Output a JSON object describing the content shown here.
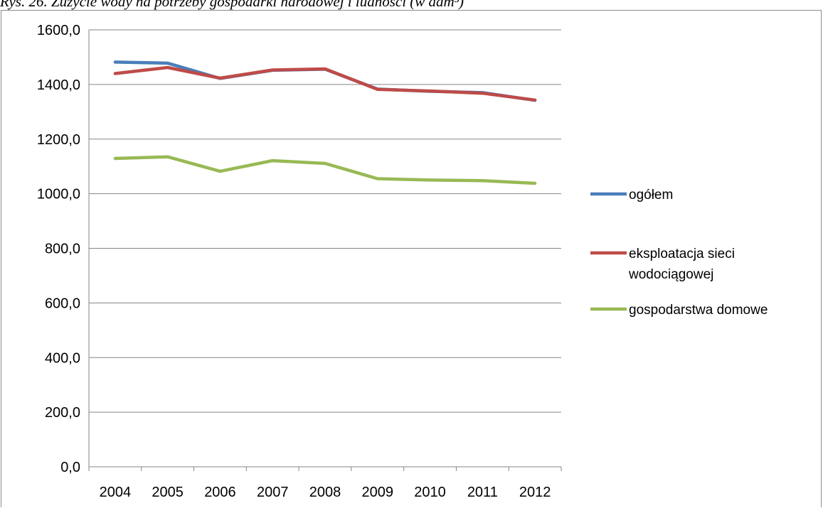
{
  "caption": "Rys. 26. Zużycie wody na potrzeby gospodarki narodowej i ludności (w dam³)",
  "chart_data": {
    "type": "line",
    "title": "",
    "xlabel": "",
    "ylabel": "",
    "categories": [
      "2004",
      "2005",
      "2006",
      "2007",
      "2008",
      "2009",
      "2010",
      "2011",
      "2012"
    ],
    "ylim": [
      0,
      1600
    ],
    "yticks": [
      "0,0",
      "200,0",
      "400,0",
      "600,0",
      "800,0",
      "1000,0",
      "1200,0",
      "1400,0",
      "1600,0"
    ],
    "grid": true,
    "legend_position": "right",
    "series": [
      {
        "name": "ogółem",
        "color": "#4a7ebb",
        "values": [
          1482,
          1478,
          1422,
          1452,
          1456,
          1383,
          1375,
          1370,
          1342
        ]
      },
      {
        "name": "eksploatacja sieci wodociągowej",
        "legend_lines": [
          "eksploatacja sieci",
          "wodociągowej"
        ],
        "color": "#be4b48",
        "values": [
          1440,
          1462,
          1423,
          1453,
          1457,
          1382,
          1376,
          1368,
          1343
        ]
      },
      {
        "name": "gospodarstwa domowe",
        "color": "#98b954",
        "values": [
          1129,
          1135,
          1082,
          1121,
          1111,
          1055,
          1050,
          1048,
          1038
        ]
      }
    ]
  }
}
